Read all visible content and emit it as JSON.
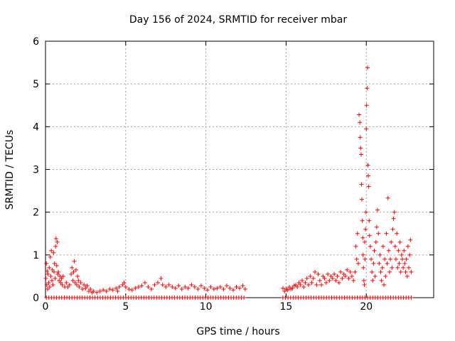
{
  "chart_data": {
    "type": "scatter",
    "title": "Day 156 of 2024, SRMTID for receiver mbar",
    "xlabel": "GPS time / hours",
    "ylabel": "SRMTID / TECUs",
    "xlim": [
      0,
      24.2
    ],
    "ylim": [
      0,
      6
    ],
    "xticks": [
      0,
      5,
      10,
      15,
      20
    ],
    "yticks": [
      0,
      1,
      2,
      3,
      4,
      5,
      6
    ],
    "grid": true,
    "marker": "+",
    "color": "#ff0000",
    "series": [
      {
        "name": "SRMTID",
        "points": [
          [
            0.02,
            0.45
          ],
          [
            0.05,
            0.8
          ],
          [
            0.08,
            0.3
          ],
          [
            0.1,
            0.62
          ],
          [
            0.13,
            0.2
          ],
          [
            0.16,
            0.55
          ],
          [
            0.2,
            0.35
          ],
          [
            0.23,
            0.7
          ],
          [
            0.26,
            0.25
          ],
          [
            0.3,
            0.95
          ],
          [
            0.33,
            0.5
          ],
          [
            0.36,
            1.1
          ],
          [
            0.4,
            0.4
          ],
          [
            0.43,
            0.65
          ],
          [
            0.46,
            0.3
          ],
          [
            0.5,
            1.05
          ],
          [
            0.53,
            0.6
          ],
          [
            0.56,
            0.8
          ],
          [
            0.6,
            0.45
          ],
          [
            0.63,
            1.2
          ],
          [
            0.66,
            1.38
          ],
          [
            0.7,
            0.75
          ],
          [
            0.73,
            1.3
          ],
          [
            0.76,
            0.55
          ],
          [
            0.8,
            0.6
          ],
          [
            0.85,
            0.4
          ],
          [
            0.9,
            0.5
          ],
          [
            0.95,
            0.35
          ],
          [
            1.0,
            0.45
          ],
          [
            1.05,
            0.3
          ],
          [
            1.1,
            0.5
          ],
          [
            1.2,
            0.25
          ],
          [
            1.3,
            0.35
          ],
          [
            1.4,
            0.25
          ],
          [
            1.5,
            0.3
          ],
          [
            1.6,
            0.55
          ],
          [
            1.65,
            0.7
          ],
          [
            1.7,
            0.4
          ],
          [
            1.75,
            0.6
          ],
          [
            1.8,
            0.85
          ],
          [
            1.85,
            0.35
          ],
          [
            1.9,
            0.65
          ],
          [
            1.95,
            0.3
          ],
          [
            2.0,
            0.5
          ],
          [
            2.05,
            0.4
          ],
          [
            2.1,
            0.25
          ],
          [
            2.2,
            0.35
          ],
          [
            2.3,
            0.2
          ],
          [
            2.4,
            0.3
          ],
          [
            2.5,
            0.22
          ],
          [
            2.6,
            0.28
          ],
          [
            2.7,
            0.15
          ],
          [
            2.8,
            0.2
          ],
          [
            2.9,
            0.12
          ],
          [
            3.0,
            0.15
          ],
          [
            3.2,
            0.12
          ],
          [
            3.4,
            0.15
          ],
          [
            3.6,
            0.18
          ],
          [
            3.8,
            0.15
          ],
          [
            4.0,
            0.2
          ],
          [
            4.2,
            0.18
          ],
          [
            4.4,
            0.22
          ],
          [
            4.5,
            0.15
          ],
          [
            4.6,
            0.25
          ],
          [
            4.8,
            0.3
          ],
          [
            4.9,
            0.35
          ],
          [
            5.0,
            0.25
          ],
          [
            5.2,
            0.2
          ],
          [
            5.4,
            0.18
          ],
          [
            5.6,
            0.22
          ],
          [
            5.8,
            0.25
          ],
          [
            6.0,
            0.28
          ],
          [
            6.2,
            0.35
          ],
          [
            6.4,
            0.25
          ],
          [
            6.6,
            0.2
          ],
          [
            6.8,
            0.3
          ],
          [
            7.0,
            0.35
          ],
          [
            7.2,
            0.45
          ],
          [
            7.3,
            0.3
          ],
          [
            7.5,
            0.25
          ],
          [
            7.7,
            0.3
          ],
          [
            7.9,
            0.25
          ],
          [
            8.1,
            0.22
          ],
          [
            8.3,
            0.28
          ],
          [
            8.5,
            0.2
          ],
          [
            8.7,
            0.25
          ],
          [
            8.9,
            0.22
          ],
          [
            9.1,
            0.3
          ],
          [
            9.3,
            0.25
          ],
          [
            9.5,
            0.2
          ],
          [
            9.7,
            0.28
          ],
          [
            9.9,
            0.22
          ],
          [
            10.1,
            0.18
          ],
          [
            10.3,
            0.25
          ],
          [
            10.5,
            0.2
          ],
          [
            10.7,
            0.22
          ],
          [
            10.9,
            0.25
          ],
          [
            11.1,
            0.2
          ],
          [
            11.3,
            0.28
          ],
          [
            11.5,
            0.22
          ],
          [
            11.7,
            0.18
          ],
          [
            11.9,
            0.25
          ],
          [
            12.1,
            0.22
          ],
          [
            12.3,
            0.28
          ],
          [
            12.45,
            0.2
          ],
          [
            14.8,
            0.22
          ],
          [
            14.9,
            0.15
          ],
          [
            15.0,
            0.2
          ],
          [
            15.1,
            0.18
          ],
          [
            15.2,
            0.25
          ],
          [
            15.3,
            0.2
          ],
          [
            15.4,
            0.22
          ],
          [
            15.5,
            0.28
          ],
          [
            15.6,
            0.3
          ],
          [
            15.7,
            0.25
          ],
          [
            15.8,
            0.35
          ],
          [
            15.9,
            0.3
          ],
          [
            16.0,
            0.4
          ],
          [
            16.1,
            0.25
          ],
          [
            16.2,
            0.35
          ],
          [
            16.3,
            0.45
          ],
          [
            16.4,
            0.3
          ],
          [
            16.5,
            0.5
          ],
          [
            16.6,
            0.35
          ],
          [
            16.7,
            0.45
          ],
          [
            16.8,
            0.6
          ],
          [
            16.9,
            0.3
          ],
          [
            17.0,
            0.55
          ],
          [
            17.1,
            0.4
          ],
          [
            17.2,
            0.3
          ],
          [
            17.3,
            0.5
          ],
          [
            17.4,
            0.45
          ],
          [
            17.5,
            0.35
          ],
          [
            17.6,
            0.55
          ],
          [
            17.7,
            0.4
          ],
          [
            17.8,
            0.5
          ],
          [
            17.9,
            0.45
          ],
          [
            18.0,
            0.55
          ],
          [
            18.1,
            0.4
          ],
          [
            18.2,
            0.5
          ],
          [
            18.3,
            0.35
          ],
          [
            18.4,
            0.6
          ],
          [
            18.5,
            0.45
          ],
          [
            18.6,
            0.55
          ],
          [
            18.7,
            0.5
          ],
          [
            18.8,
            0.65
          ],
          [
            18.9,
            0.45
          ],
          [
            19.0,
            0.6
          ],
          [
            19.1,
            0.5
          ],
          [
            19.2,
            0.4
          ],
          [
            19.3,
            0.6
          ],
          [
            19.35,
            1.2
          ],
          [
            19.4,
            0.9
          ],
          [
            19.45,
            1.5
          ],
          [
            19.5,
            0.8
          ],
          [
            19.55,
            4.28
          ],
          [
            19.6,
            4.1
          ],
          [
            19.62,
            3.75
          ],
          [
            19.65,
            3.5
          ],
          [
            19.68,
            3.35
          ],
          [
            19.7,
            2.65
          ],
          [
            19.72,
            2.3
          ],
          [
            19.75,
            1.8
          ],
          [
            19.78,
            1.4
          ],
          [
            19.8,
            1.0
          ],
          [
            19.82,
            0.7
          ],
          [
            19.85,
            0.4
          ],
          [
            19.88,
            0.3
          ],
          [
            19.9,
            1.3
          ],
          [
            19.92,
            0.9
          ],
          [
            19.95,
            1.6
          ],
          [
            19.98,
            2.0
          ],
          [
            20.0,
            3.95
          ],
          [
            20.02,
            4.5
          ],
          [
            20.05,
            4.9
          ],
          [
            20.08,
            5.38
          ],
          [
            20.1,
            3.1
          ],
          [
            20.12,
            2.85
          ],
          [
            20.15,
            2.6
          ],
          [
            20.18,
            1.8
          ],
          [
            20.2,
            1.45
          ],
          [
            20.25,
            1.2
          ],
          [
            20.3,
            0.9
          ],
          [
            20.35,
            0.6
          ],
          [
            20.4,
            0.4
          ],
          [
            20.45,
            0.8
          ],
          [
            20.5,
            1.1
          ],
          [
            20.55,
            0.5
          ],
          [
            20.6,
            1.3
          ],
          [
            20.65,
            1.65
          ],
          [
            20.7,
            2.05
          ],
          [
            20.75,
            1.5
          ],
          [
            20.8,
            0.8
          ],
          [
            20.85,
            1.0
          ],
          [
            20.9,
            0.6
          ],
          [
            20.95,
            0.4
          ],
          [
            21.0,
            0.7
          ],
          [
            21.05,
            1.2
          ],
          [
            21.1,
            0.3
          ],
          [
            21.15,
            0.9
          ],
          [
            21.2,
            0.5
          ],
          [
            21.25,
            1.5
          ],
          [
            21.3,
            0.8
          ],
          [
            21.35,
            2.33
          ],
          [
            21.4,
            1.1
          ],
          [
            21.45,
            0.6
          ],
          [
            21.5,
            0.9
          ],
          [
            21.55,
            1.3
          ],
          [
            21.6,
            0.7
          ],
          [
            21.65,
            1.6
          ],
          [
            21.7,
            1.85
          ],
          [
            21.75,
            2.0
          ],
          [
            21.8,
            1.2
          ],
          [
            21.85,
            0.9
          ],
          [
            21.9,
            1.5
          ],
          [
            21.95,
            0.7
          ],
          [
            22.0,
            1.1
          ],
          [
            22.05,
            0.8
          ],
          [
            22.1,
            1.3
          ],
          [
            22.15,
            0.6
          ],
          [
            22.2,
            1.0
          ],
          [
            22.25,
            0.9
          ],
          [
            22.3,
            0.7
          ],
          [
            22.35,
            1.1
          ],
          [
            22.4,
            0.8
          ],
          [
            22.45,
            0.6
          ],
          [
            22.5,
            0.9
          ],
          [
            22.55,
            0.5
          ],
          [
            22.6,
            1.2
          ],
          [
            22.65,
            0.7
          ],
          [
            22.7,
            1.0
          ],
          [
            22.75,
            1.35
          ],
          [
            22.8,
            0.6
          ]
        ]
      },
      {
        "name": "zero-baseline",
        "x_ranges": [
          [
            0.05,
            12.45
          ],
          [
            14.8,
            22.8
          ]
        ],
        "step": 0.16,
        "y": 0
      }
    ]
  }
}
